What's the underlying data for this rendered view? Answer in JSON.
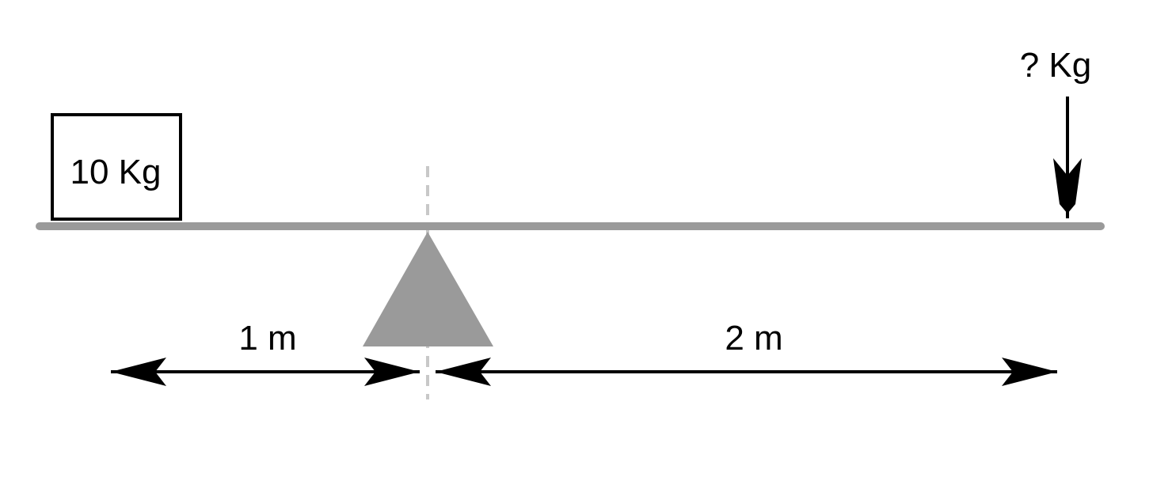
{
  "diagram": {
    "known_mass_label": "10 Kg",
    "unknown_mass_label": "? Kg",
    "left_distance_label": "1 m",
    "right_distance_label": "2 m"
  },
  "colors": {
    "beam": "#9a9a9a",
    "fulcrum": "#9a9a9a",
    "center_line": "#c8c8c8",
    "ink": "#000000",
    "background": "#ffffff"
  }
}
